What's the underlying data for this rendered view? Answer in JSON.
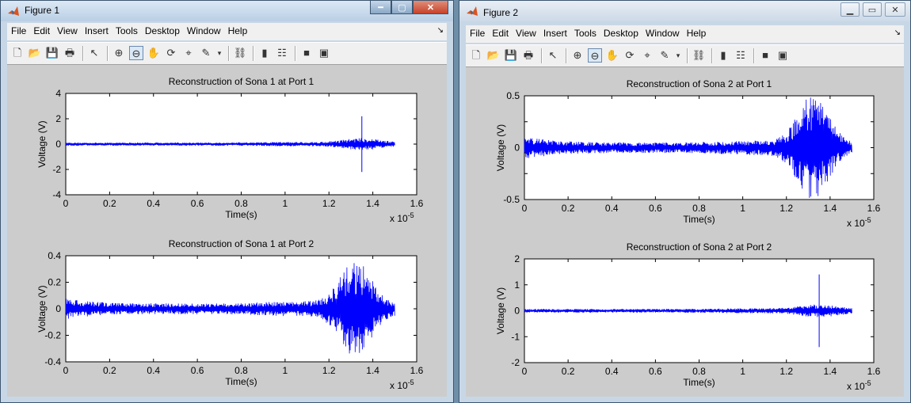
{
  "menus": [
    "File",
    "Edit",
    "View",
    "Insert",
    "Tools",
    "Desktop",
    "Window",
    "Help"
  ],
  "toolbar": [
    {
      "name": "new-figure-icon",
      "glyph": "🗋",
      "interact": true
    },
    {
      "name": "open-file-icon",
      "glyph": "📂",
      "interact": true
    },
    {
      "name": "save-figure-icon",
      "glyph": "💾",
      "interact": true
    },
    {
      "name": "print-figure-icon",
      "glyph": "🖶",
      "interact": true
    },
    {
      "sep": true
    },
    {
      "name": "edit-plot-arrow-icon",
      "glyph": "↖",
      "interact": true
    },
    {
      "sep": true
    },
    {
      "name": "zoom-in-icon",
      "glyph": "⊕",
      "interact": true
    },
    {
      "name": "zoom-out-icon",
      "glyph": "⊖",
      "interact": true,
      "active": true
    },
    {
      "name": "pan-hand-icon",
      "glyph": "✋",
      "interact": true
    },
    {
      "name": "rotate-3d-icon",
      "glyph": "⟳",
      "interact": true
    },
    {
      "name": "data-cursor-icon",
      "glyph": "⌖",
      "interact": true
    },
    {
      "name": "brush-icon",
      "glyph": "✎",
      "interact": true
    },
    {
      "name": "brush-dropdown-icon",
      "glyph": "▾",
      "interact": true,
      "small": true
    },
    {
      "sep": true
    },
    {
      "name": "link-plot-icon",
      "glyph": "⛓",
      "interact": true
    },
    {
      "sep": true
    },
    {
      "name": "insert-colorbar-icon",
      "glyph": "▮",
      "interact": true
    },
    {
      "name": "insert-legend-icon",
      "glyph": "☷",
      "interact": true
    },
    {
      "sep": true
    },
    {
      "name": "hide-plot-tools-icon",
      "glyph": "■",
      "interact": true
    },
    {
      "name": "show-plot-tools-icon",
      "glyph": "▣",
      "interact": true
    }
  ],
  "windows": [
    {
      "title": "Figure 1",
      "dock_glyph": "↘",
      "min_glyph": "━",
      "max_glyph": "▢",
      "close_glyph": "✕",
      "axes": [
        {
          "title": "Reconstruction of Sona 1 at Port 1",
          "xlabel": "Time(s)",
          "ylabel": "Voltage (V)",
          "exponent": "x 10",
          "exponent_power": "-5",
          "xticks": [
            "0",
            "0.2",
            "0.4",
            "0.6",
            "0.8",
            "1",
            "1.2",
            "1.4",
            "1.6"
          ],
          "yticks": [
            "4",
            "2",
            "0",
            "-2",
            "-4"
          ]
        },
        {
          "title": "Reconstruction of Sona 1 at Port 2",
          "xlabel": "Time(s)",
          "ylabel": "Voltage (V)",
          "exponent": "x 10",
          "exponent_power": "-5",
          "xticks": [
            "0",
            "0.2",
            "0.4",
            "0.6",
            "0.8",
            "1",
            "1.2",
            "1.4",
            "1.6"
          ],
          "yticks": [
            "0.4",
            "0.2",
            "0",
            "-0.2",
            "-0.4"
          ]
        }
      ]
    },
    {
      "title": "Figure 2",
      "dock_glyph": "↘",
      "min_glyph": "▁",
      "max_glyph": "▭",
      "close_glyph": "✕",
      "axes": [
        {
          "title": "Reconstruction of Sona 2 at Port 1",
          "xlabel": "Time(s)",
          "ylabel": "Voltage (V)",
          "exponent": "x 10",
          "exponent_power": "-5",
          "xticks": [
            "0",
            "0.2",
            "0.4",
            "0.6",
            "0.8",
            "1",
            "1.2",
            "1.4",
            "1.6"
          ],
          "yticks": [
            "0.5",
            "",
            "0",
            "",
            "-0.5"
          ]
        },
        {
          "title": "Reconstruction of Sona 2 at Port 2",
          "xlabel": "Time(s)",
          "ylabel": "Voltage (V)",
          "exponent": "x 10",
          "exponent_power": "-5",
          "xticks": [
            "0",
            "0.2",
            "0.4",
            "0.6",
            "0.8",
            "1",
            "1.2",
            "1.4",
            "1.6"
          ],
          "yticks": [
            "2",
            "1",
            "0",
            "-1",
            "-2"
          ]
        }
      ]
    }
  ],
  "chart_data": [
    {
      "type": "line",
      "title": "Reconstruction of Sona 1 at Port 1",
      "xlabel": "Time(s)",
      "ylabel": "Voltage (V)",
      "x_scale": "1e-5",
      "xlim": [
        0,
        1.6
      ],
      "ylim": [
        -4,
        4
      ],
      "grid": false,
      "color": "#0000ff",
      "series": [
        {
          "x_range": [
            0,
            1.5
          ],
          "base_amplitude": 0.12,
          "burst_center": 1.35,
          "burst_width": 0.12,
          "burst_amplitude": 0.35,
          "spike_x": 1.35,
          "spike_top": 2.2,
          "spike_bottom": -2.2
        }
      ]
    },
    {
      "type": "line",
      "title": "Reconstruction of Sona 1 at Port 2",
      "xlabel": "Time(s)",
      "ylabel": "Voltage (V)",
      "x_scale": "1e-5",
      "xlim": [
        0,
        1.6
      ],
      "ylim": [
        -0.4,
        0.4
      ],
      "grid": false,
      "color": "#0000ff",
      "series": [
        {
          "x_range": [
            0,
            1.5
          ],
          "base_amplitude": 0.04,
          "start_amplitude": 0.08,
          "burst_center": 1.32,
          "burst_width": 0.1,
          "burst_amplitude": 0.32
        }
      ]
    },
    {
      "type": "line",
      "title": "Reconstruction of Sona 2 at Port 1",
      "xlabel": "Time(s)",
      "ylabel": "Voltage (V)",
      "x_scale": "1e-5",
      "xlim": [
        0,
        1.6
      ],
      "ylim": [
        -0.5,
        0.5
      ],
      "grid": false,
      "color": "#0000ff",
      "series": [
        {
          "x_range": [
            0,
            1.5
          ],
          "base_amplitude": 0.05,
          "start_amplitude": 0.12,
          "burst_center": 1.32,
          "burst_width": 0.1,
          "burst_amplitude": 0.45
        }
      ]
    },
    {
      "type": "line",
      "title": "Reconstruction of Sona 2 at Port 2",
      "xlabel": "Time(s)",
      "ylabel": "Voltage (V)",
      "x_scale": "1e-5",
      "xlim": [
        0,
        1.6
      ],
      "ylim": [
        -2,
        2
      ],
      "grid": false,
      "color": "#0000ff",
      "series": [
        {
          "x_range": [
            0,
            1.5
          ],
          "base_amplitude": 0.07,
          "burst_center": 1.35,
          "burst_width": 0.12,
          "burst_amplitude": 0.18,
          "spike_x": 1.35,
          "spike_top": 1.4,
          "spike_bottom": -1.4
        }
      ]
    }
  ]
}
